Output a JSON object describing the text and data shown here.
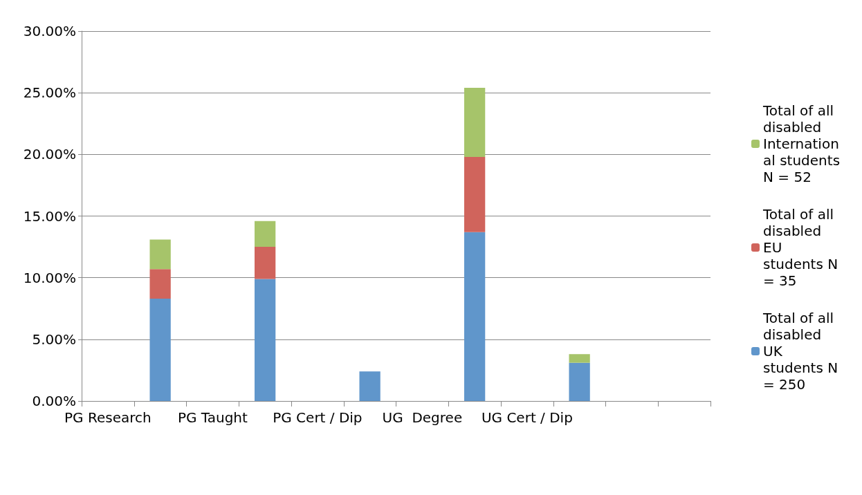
{
  "chart_data": {
    "type": "bar",
    "stacked": true,
    "categories": [
      "PG Research",
      null,
      "PG Taught",
      null,
      "PG Cert / Dip",
      null,
      "UG  Degree",
      null,
      "UG Cert / Dip",
      null,
      null,
      null
    ],
    "series": [
      {
        "name": "Total of all disabled  UK students N = 250",
        "color": "#6096cb",
        "values": [
          null,
          8.3,
          null,
          9.9,
          null,
          2.4,
          null,
          13.7,
          null,
          3.1,
          null,
          null
        ]
      },
      {
        "name": "Total of all disabled  EU students N = 35",
        "color": "#d0645c",
        "values": [
          null,
          2.4,
          null,
          2.6,
          null,
          null,
          null,
          6.1,
          null,
          null,
          null,
          null
        ]
      },
      {
        "name": "Total of all disabled International students N = 52",
        "color": "#a6c46a",
        "values": [
          null,
          2.4,
          null,
          2.1,
          null,
          null,
          null,
          5.6,
          null,
          0.7,
          null,
          null
        ]
      }
    ],
    "ylim": [
      0,
      30
    ],
    "yticks": [
      {
        "value": 0,
        "label": "0.00%"
      },
      {
        "value": 5,
        "label": "5.00%"
      },
      {
        "value": 10,
        "label": "10.00%"
      },
      {
        "value": 15,
        "label": "15.00%"
      },
      {
        "value": 20,
        "label": "20.00%"
      },
      {
        "value": 25,
        "label": "25.00%"
      },
      {
        "value": 30,
        "label": "30.00%"
      }
    ],
    "grid": "y",
    "legend": "right"
  }
}
